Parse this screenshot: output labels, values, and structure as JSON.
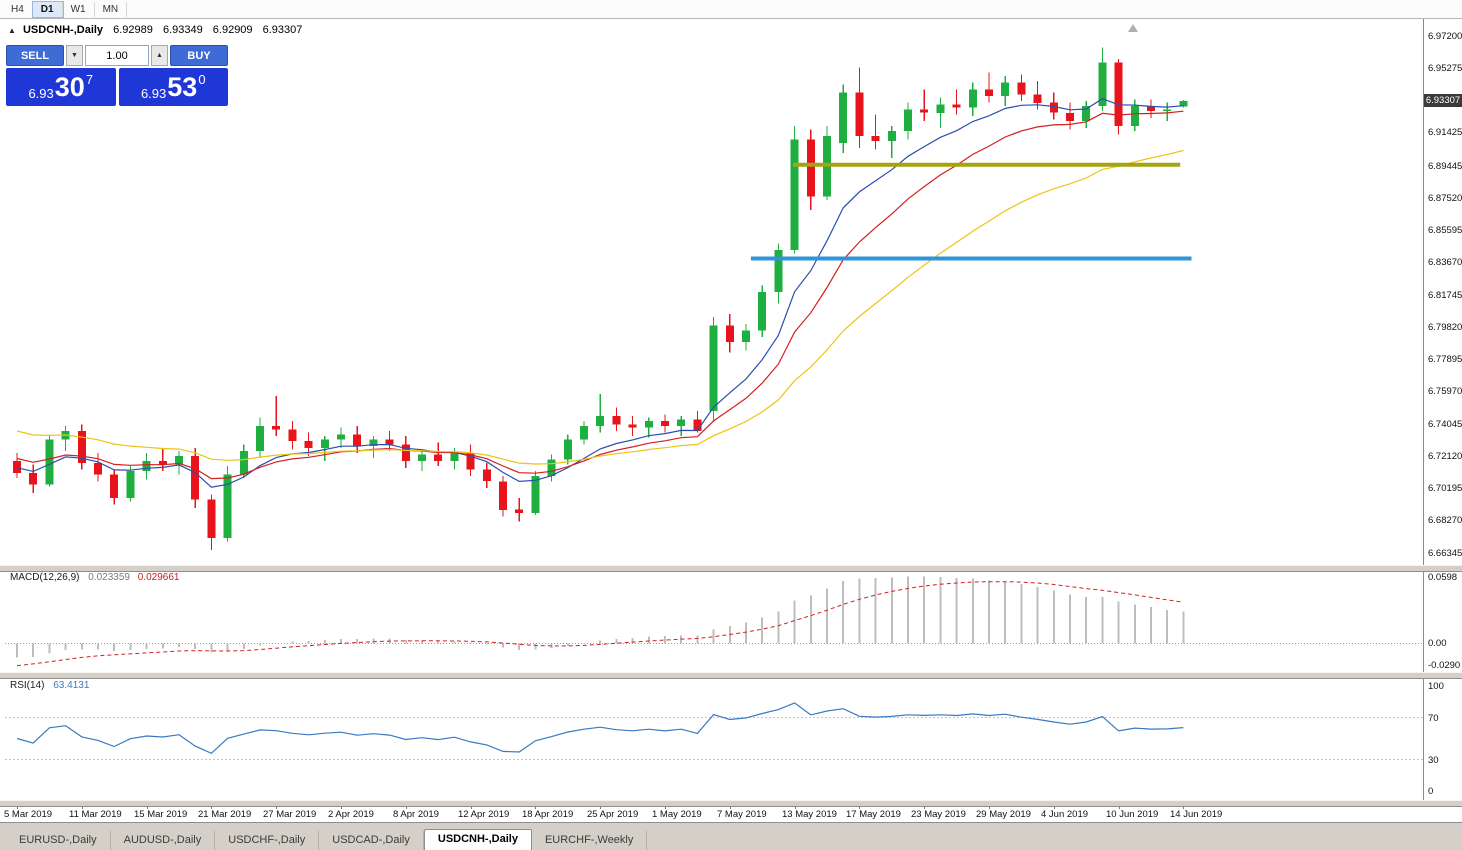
{
  "toolbar": {
    "timeframes": [
      {
        "label": "H4",
        "active": false
      },
      {
        "label": "D1",
        "active": true
      },
      {
        "label": "W1",
        "active": false
      },
      {
        "label": "MN",
        "active": false
      }
    ]
  },
  "icons": {
    "title_marker": "▲",
    "volume_down": "▼",
    "volume_up": "▲"
  },
  "chart_header": {
    "symbol": "USDCNH-,Daily",
    "open": "6.92989",
    "high": "6.93349",
    "low": "6.92909",
    "close": "6.93307"
  },
  "trade_panel": {
    "sell_label": "SELL",
    "buy_label": "BUY",
    "volume": "1.00",
    "bid": {
      "main": "6.93",
      "big": "30",
      "sup": "7"
    },
    "ask": {
      "main": "6.93",
      "big": "53",
      "sup": "0"
    }
  },
  "chart_data": {
    "type": "candlestick",
    "symbol": "USDCNH-,Daily",
    "timeframe": "Daily",
    "current_price": "6.93307",
    "y_range": [
      6.656,
      6.982
    ],
    "price_axis_labels": [
      "6.97200",
      "6.95275",
      "6.93350",
      "6.91425",
      "6.89445",
      "6.87520",
      "6.85595",
      "6.83670",
      "6.81745",
      "6.79820",
      "6.77895",
      "6.75970",
      "6.74045",
      "6.72120",
      "6.70195",
      "6.68270",
      "6.66345"
    ],
    "candles": [
      [
        6.718,
        6.723,
        6.708,
        6.711
      ],
      [
        6.711,
        6.716,
        6.699,
        6.704
      ],
      [
        6.704,
        6.734,
        6.703,
        6.731
      ],
      [
        6.731,
        6.739,
        6.724,
        6.736
      ],
      [
        6.736,
        6.74,
        6.713,
        6.717
      ],
      [
        6.717,
        6.723,
        6.706,
        6.71
      ],
      [
        6.71,
        6.713,
        6.692,
        6.696
      ],
      [
        6.696,
        6.715,
        6.694,
        6.712
      ],
      [
        6.712,
        6.723,
        6.707,
        6.718
      ],
      [
        6.718,
        6.726,
        6.712,
        6.716
      ],
      [
        6.716,
        6.724,
        6.71,
        6.721
      ],
      [
        6.721,
        6.726,
        6.69,
        6.695
      ],
      [
        6.695,
        6.698,
        6.665,
        6.672
      ],
      [
        6.672,
        6.715,
        6.67,
        6.71
      ],
      [
        6.71,
        6.728,
        6.708,
        6.724
      ],
      [
        6.724,
        6.744,
        6.72,
        6.739
      ],
      [
        6.739,
        6.757,
        6.733,
        6.737
      ],
      [
        6.737,
        6.742,
        6.725,
        6.73
      ],
      [
        6.73,
        6.735,
        6.721,
        6.726
      ],
      [
        6.726,
        6.733,
        6.718,
        6.731
      ],
      [
        6.731,
        6.738,
        6.726,
        6.734
      ],
      [
        6.734,
        6.739,
        6.723,
        6.727
      ],
      [
        6.727,
        6.733,
        6.72,
        6.731
      ],
      [
        6.731,
        6.736,
        6.724,
        6.728
      ],
      [
        6.728,
        6.733,
        6.714,
        6.718
      ],
      [
        6.718,
        6.725,
        6.712,
        6.722
      ],
      [
        6.722,
        6.729,
        6.715,
        6.718
      ],
      [
        6.718,
        6.726,
        6.713,
        6.723
      ],
      [
        6.723,
        6.728,
        6.709,
        6.713
      ],
      [
        6.713,
        6.717,
        6.702,
        6.706
      ],
      [
        6.706,
        6.709,
        6.685,
        6.689
      ],
      [
        6.689,
        6.696,
        6.682,
        6.687
      ],
      [
        6.687,
        6.712,
        6.686,
        6.709
      ],
      [
        6.709,
        6.722,
        6.706,
        6.719
      ],
      [
        6.719,
        6.734,
        6.716,
        6.731
      ],
      [
        6.731,
        6.742,
        6.728,
        6.739
      ],
      [
        6.739,
        6.758,
        6.735,
        6.745
      ],
      [
        6.745,
        6.75,
        6.736,
        6.74
      ],
      [
        6.74,
        6.745,
        6.733,
        6.738
      ],
      [
        6.738,
        6.744,
        6.732,
        6.742
      ],
      [
        6.742,
        6.746,
        6.735,
        6.739
      ],
      [
        6.739,
        6.745,
        6.733,
        6.743
      ],
      [
        6.743,
        6.748,
        6.735,
        6.736
      ],
      [
        6.748,
        6.804,
        6.742,
        6.799
      ],
      [
        6.799,
        6.806,
        6.783,
        6.789
      ],
      [
        6.789,
        6.8,
        6.784,
        6.796
      ],
      [
        6.796,
        6.823,
        6.792,
        6.819
      ],
      [
        6.819,
        6.848,
        6.812,
        6.844
      ],
      [
        6.844,
        6.918,
        6.842,
        6.91
      ],
      [
        6.91,
        6.916,
        6.868,
        6.876
      ],
      [
        6.876,
        6.918,
        6.874,
        6.912
      ],
      [
        6.908,
        6.943,
        6.902,
        6.938
      ],
      [
        6.938,
        6.953,
        6.905,
        6.912
      ],
      [
        6.912,
        6.925,
        6.904,
        6.909
      ],
      [
        6.909,
        6.918,
        6.899,
        6.915
      ],
      [
        6.915,
        6.932,
        6.91,
        6.928
      ],
      [
        6.928,
        6.94,
        6.921,
        6.926
      ],
      [
        6.926,
        6.935,
        6.917,
        6.931
      ],
      [
        6.931,
        6.94,
        6.925,
        6.929
      ],
      [
        6.929,
        6.944,
        6.924,
        6.94
      ],
      [
        6.94,
        6.95,
        6.932,
        6.936
      ],
      [
        6.936,
        6.948,
        6.93,
        6.944
      ],
      [
        6.944,
        6.949,
        6.933,
        6.937
      ],
      [
        6.937,
        6.945,
        6.928,
        6.932
      ],
      [
        6.932,
        6.938,
        6.922,
        6.926
      ],
      [
        6.926,
        6.932,
        6.916,
        6.921
      ],
      [
        6.921,
        6.933,
        6.917,
        6.93
      ],
      [
        6.93,
        6.965,
        6.927,
        6.956
      ],
      [
        6.956,
        6.958,
        6.913,
        6.918
      ],
      [
        6.918,
        6.934,
        6.915,
        6.93
      ],
      [
        6.93,
        6.934,
        6.923,
        6.927
      ],
      [
        6.927,
        6.932,
        6.921,
        6.928
      ],
      [
        6.9299,
        6.9335,
        6.9291,
        6.9331
      ]
    ],
    "moving_averages": [
      {
        "period": 8,
        "seed_offset": 0.004,
        "color": "#2b4fae"
      },
      {
        "period": 13,
        "seed_offset": 0.01,
        "color": "#d41f1f"
      },
      {
        "period": 26,
        "seed_offset": 0.027,
        "color": "#edc414"
      }
    ],
    "horizontal_lines": [
      {
        "price": 6.895,
        "from_index": 47.9,
        "to_index": 71.8,
        "color": "#a2a410"
      },
      {
        "price": 6.839,
        "from_index": 45.3,
        "to_index": 72.5,
        "color": "#2f94d8"
      }
    ],
    "x_ticks": [
      {
        "index": 0,
        "label": "5 Mar 2019"
      },
      {
        "index": 4,
        "label": "11 Mar 2019"
      },
      {
        "index": 8,
        "label": "15 Mar 2019"
      },
      {
        "index": 12,
        "label": "21 Mar 2019"
      },
      {
        "index": 16,
        "label": "27 Mar 2019"
      },
      {
        "index": 20,
        "label": "2 Apr 2019"
      },
      {
        "index": 24,
        "label": "8 Apr 2019"
      },
      {
        "index": 28,
        "label": "12 Apr 2019"
      },
      {
        "index": 32,
        "label": "18 Apr 2019"
      },
      {
        "index": 36,
        "label": "25 Apr 2019"
      },
      {
        "index": 40,
        "label": "1 May 2019"
      },
      {
        "index": 44,
        "label": "7 May 2019"
      },
      {
        "index": 48,
        "label": "13 May 2019"
      },
      {
        "index": 52,
        "label": "17 May 2019"
      },
      {
        "index": 56,
        "label": "23 May 2019"
      },
      {
        "index": 60,
        "label": "29 May 2019"
      },
      {
        "index": 64,
        "label": "4 Jun 2019"
      },
      {
        "index": 68,
        "label": "10 Jun 2019"
      },
      {
        "index": 72,
        "label": "14 Jun 2019"
      }
    ]
  },
  "macd_panel": {
    "name": "MACD(12,26,9)",
    "main_value": "0.023359",
    "signal_value": "0.029661",
    "axis_top": "0.0598",
    "axis_zero": "0.00",
    "axis_bottom": "-0.0290",
    "fast_period": 12,
    "slow_period": 26,
    "signal_period": 9,
    "bar_color": "#bdbdbd",
    "signal_color": "#d42020"
  },
  "rsi_panel": {
    "name": "RSI(14)",
    "value": "63.4131",
    "period": 14,
    "axis_labels": [
      "100",
      "70",
      "30",
      "0"
    ],
    "level_lines": [
      70,
      30
    ],
    "line_color": "#3a79c1"
  },
  "tabs": [
    {
      "label": "EURUSD-,Daily",
      "active": false
    },
    {
      "label": "AUDUSD-,Daily",
      "active": false
    },
    {
      "label": "USDCHF-,Daily",
      "active": false
    },
    {
      "label": "USDCAD-,Daily",
      "active": false
    },
    {
      "label": "USDCNH-,Daily",
      "active": true
    },
    {
      "label": "EURCHF-,Weekly",
      "active": false
    }
  ],
  "colors": {
    "bull": "#1fae40",
    "bear": "#e8131b",
    "badge_bg": "#3a3a3a",
    "trade_button": "#3e6bd6",
    "price_box": "#2037d8"
  }
}
